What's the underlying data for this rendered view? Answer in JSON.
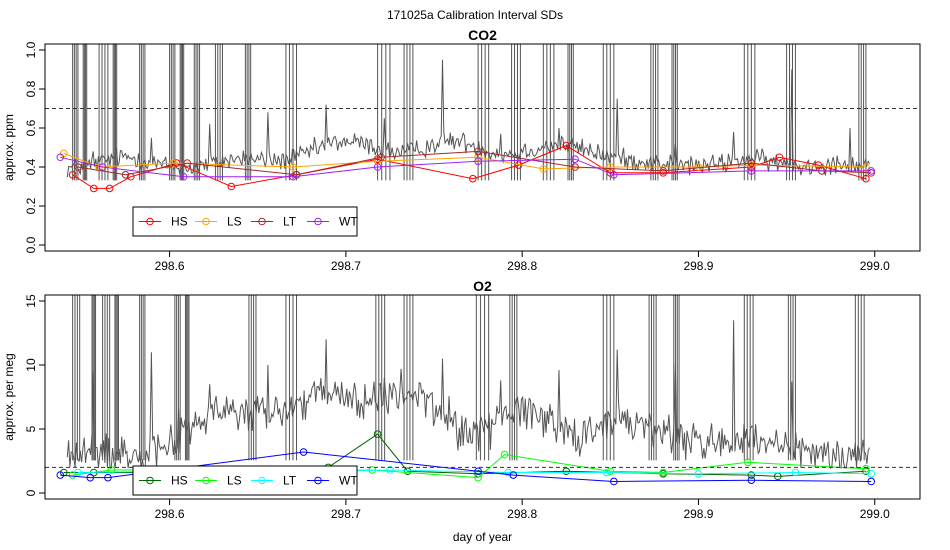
{
  "title": "171025a   Calibration Interval SDs",
  "chart_data": [
    {
      "type": "line",
      "title": "CO2",
      "xlabel": "",
      "ylabel": "approx. ppm",
      "xlim": [
        298.535,
        299.02
      ],
      "ylim": [
        0.0,
        1.0
      ],
      "xticks": [
        "298.6",
        "298.7",
        "298.8",
        "298.9",
        "299.0"
      ],
      "yticks": [
        "0.0",
        "0.2",
        "0.4",
        "0.6",
        "0.8",
        "1.0"
      ],
      "threshold": 0.7,
      "legend_position": "bottom-left",
      "trace": {
        "name": "raw variability",
        "color": "#555555",
        "baseline": 0.39,
        "bumps": [
          [
            298.575,
            0.06,
            0.02
          ],
          [
            298.64,
            0.05,
            0.02
          ],
          [
            298.7,
            0.14,
            0.03
          ],
          [
            298.76,
            0.14,
            0.025
          ],
          [
            298.82,
            0.12,
            0.03
          ],
          [
            298.87,
            0.03,
            0.03
          ],
          [
            298.93,
            0.05,
            0.02
          ],
          [
            298.98,
            0.03,
            0.02
          ]
        ],
        "noise": 0.05,
        "spikes": [
          0.48,
          0.55,
          0.62,
          0.68,
          0.72,
          0.65,
          0.95,
          0.57,
          0.6,
          0.75,
          0.52,
          0.58,
          0.9,
          0.6
        ],
        "saturation_bands": [
          [
            298.545,
            298.548
          ],
          [
            298.551,
            298.553
          ],
          [
            298.56,
            298.565
          ],
          [
            298.568,
            298.57
          ],
          [
            298.583,
            298.586
          ],
          [
            298.6,
            298.603
          ],
          [
            298.606,
            298.608
          ],
          [
            298.614,
            298.617
          ],
          [
            298.626,
            298.63
          ],
          [
            298.643,
            298.646
          ],
          [
            298.666,
            298.672
          ],
          [
            298.718,
            298.725
          ],
          [
            298.733,
            298.738
          ],
          [
            298.775,
            298.781
          ],
          [
            298.794,
            298.799
          ],
          [
            298.812,
            298.818
          ],
          [
            298.826,
            298.829
          ],
          [
            298.846,
            298.852
          ],
          [
            298.873,
            298.877
          ],
          [
            298.885,
            298.888
          ],
          [
            298.926,
            298.932
          ],
          [
            298.95,
            298.955
          ],
          [
            298.991,
            298.995
          ]
        ]
      },
      "series": [
        {
          "name": "HS",
          "color": "#ff0000",
          "x": [
            298.545,
            298.557,
            298.566,
            298.578,
            298.604,
            298.635,
            298.672,
            298.718,
            298.772,
            298.798,
            298.825,
            298.85,
            298.88,
            298.93,
            298.946,
            298.968,
            298.995
          ],
          "y": [
            0.36,
            0.29,
            0.29,
            0.35,
            0.42,
            0.3,
            0.36,
            0.44,
            0.34,
            0.41,
            0.51,
            0.37,
            0.37,
            0.4,
            0.45,
            0.41,
            0.34
          ]
        },
        {
          "name": "LS",
          "color": "#ffa500",
          "x": [
            298.54,
            298.56,
            298.602,
            298.67,
            298.718,
            298.775,
            298.812,
            298.85,
            298.9,
            298.93,
            298.995
          ],
          "y": [
            0.47,
            0.4,
            0.42,
            0.4,
            0.43,
            0.45,
            0.39,
            0.4,
            0.4,
            0.41,
            0.4
          ]
        },
        {
          "name": "LT",
          "color": "#a52a2a",
          "x": [
            298.548,
            298.575,
            298.61,
            298.672,
            298.72,
            298.775,
            298.83,
            298.88,
            298.93,
            298.97,
            298.998
          ],
          "y": [
            0.4,
            0.36,
            0.42,
            0.36,
            0.45,
            0.48,
            0.4,
            0.38,
            0.42,
            0.38,
            0.37
          ]
        },
        {
          "name": "WT",
          "color": "#a020f0",
          "x": [
            298.538,
            298.562,
            298.608,
            298.67,
            298.718,
            298.775,
            298.83,
            298.852,
            298.93,
            298.998
          ],
          "y": [
            0.45,
            0.4,
            0.35,
            0.35,
            0.4,
            0.43,
            0.44,
            0.36,
            0.38,
            0.38
          ]
        }
      ]
    },
    {
      "type": "line",
      "title": "O2",
      "xlabel": "day of year",
      "ylabel": "approx. per meg",
      "xlim": [
        298.535,
        299.02
      ],
      "ylim": [
        0,
        15
      ],
      "xticks": [
        "298.6",
        "298.7",
        "298.8",
        "298.9",
        "299.0"
      ],
      "yticks": [
        "0",
        "5",
        "10",
        "15"
      ],
      "threshold": 2,
      "legend_position": "bottom-left",
      "trace": {
        "name": "raw variability",
        "color": "#555555",
        "baseline": 3.0,
        "bumps": [
          [
            298.63,
            3.0,
            0.03
          ],
          [
            298.69,
            4.5,
            0.035
          ],
          [
            298.74,
            4.0,
            0.025
          ],
          [
            298.8,
            3.5,
            0.025
          ],
          [
            298.86,
            2.5,
            0.03
          ],
          [
            298.92,
            1.0,
            0.03
          ]
        ],
        "noise": 1.6,
        "spikes": [
          9.5,
          11,
          8.5,
          10,
          12,
          9,
          10.5,
          8.8,
          9.6,
          11.2,
          10.1,
          13.5,
          8.7
        ],
        "saturation_bands": [
          [
            298.545,
            298.549
          ],
          [
            298.556,
            298.558
          ],
          [
            298.562,
            298.566
          ],
          [
            298.569,
            298.571
          ],
          [
            298.583,
            298.586
          ],
          [
            298.603,
            298.606
          ],
          [
            298.609,
            298.611
          ],
          [
            298.645,
            298.649
          ],
          [
            298.666,
            298.672
          ],
          [
            298.717,
            298.722
          ],
          [
            298.733,
            298.738
          ],
          [
            298.774,
            298.781
          ],
          [
            298.793,
            298.797
          ],
          [
            298.846,
            298.852
          ],
          [
            298.872,
            298.876
          ],
          [
            298.886,
            298.889
          ],
          [
            298.926,
            298.931
          ],
          [
            298.951,
            298.955
          ],
          [
            298.989,
            298.994
          ]
        ]
      },
      "series": [
        {
          "name": "HS",
          "color": "#006400",
          "x": [
            298.54,
            298.557,
            298.608,
            298.69,
            298.718,
            298.735,
            298.775,
            298.825,
            298.88,
            298.93,
            298.945,
            298.995
          ],
          "y": [
            1.6,
            1.6,
            1.6,
            2.0,
            4.6,
            1.7,
            1.5,
            1.7,
            1.5,
            1.4,
            1.3,
            1.7
          ]
        },
        {
          "name": "LS",
          "color": "#00ff00",
          "x": [
            298.545,
            298.567,
            298.615,
            298.672,
            298.715,
            298.775,
            298.79,
            298.85,
            298.88,
            298.928,
            298.995
          ],
          "y": [
            1.4,
            1.8,
            1.8,
            1.7,
            1.8,
            1.2,
            3.0,
            1.7,
            1.6,
            2.4,
            1.9
          ]
        },
        {
          "name": "LT",
          "color": "#00ffff",
          "x": [
            298.548,
            298.6,
            298.665,
            298.725,
            298.792,
            298.848,
            298.9,
            298.955,
            298.998
          ],
          "y": [
            1.6,
            1.7,
            1.6,
            1.8,
            1.6,
            1.6,
            1.5,
            1.6,
            1.5
          ]
        },
        {
          "name": "WT",
          "color": "#0000ff",
          "x": [
            298.538,
            298.555,
            298.565,
            298.676,
            298.775,
            298.795,
            298.852,
            298.93,
            298.998
          ],
          "y": [
            1.4,
            1.2,
            1.2,
            3.2,
            1.7,
            1.4,
            0.9,
            1.0,
            0.9
          ]
        }
      ]
    }
  ]
}
